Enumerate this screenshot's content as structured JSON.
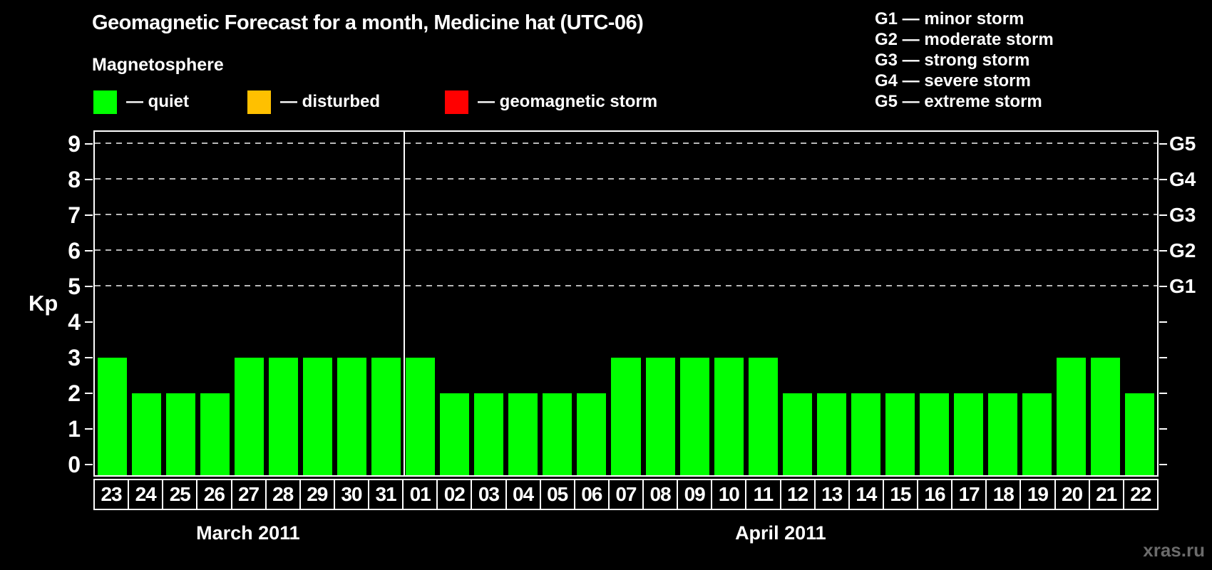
{
  "title": "Geomagnetic Forecast for a month, Medicine hat (UTC-06)",
  "subtitle": "Magnetosphere",
  "legend": {
    "items": [
      {
        "label": "— quiet",
        "color": "#00ff00"
      },
      {
        "label": "— disturbed",
        "color": "#ffc000"
      },
      {
        "label": "— geomagnetic storm",
        "color": "#ff0000"
      }
    ]
  },
  "g_legend": [
    "G1 — minor storm",
    "G2 — moderate storm",
    "G3 — strong storm",
    "G4 — severe storm",
    "G5 — extreme storm"
  ],
  "y_axis": {
    "label": "Kp",
    "ticks": [
      0,
      1,
      2,
      3,
      4,
      5,
      6,
      7,
      8,
      9
    ]
  },
  "right_axis": {
    "labels": [
      {
        "kp": 9,
        "label": "G5"
      },
      {
        "kp": 8,
        "label": "G4"
      },
      {
        "kp": 7,
        "label": "G3"
      },
      {
        "kp": 6,
        "label": "G2"
      },
      {
        "kp": 5,
        "label": "G1"
      }
    ]
  },
  "watermark": "xras.ru",
  "chart_data": {
    "type": "bar",
    "title": "Geomagnetic Forecast for a month, Medicine hat (UTC-06)",
    "xlabel": "",
    "ylabel": "Kp",
    "ylim": [
      0,
      9.5
    ],
    "grid": "horizontal dashed lines at Kp 5,6,7,8,9",
    "legend_position": "top",
    "bar_color": "#00ff00",
    "gridline_levels": [
      5,
      6,
      7,
      8,
      9
    ],
    "categories": [
      "23",
      "24",
      "25",
      "26",
      "27",
      "28",
      "29",
      "30",
      "31",
      "01",
      "02",
      "03",
      "04",
      "05",
      "06",
      "07",
      "08",
      "09",
      "10",
      "11",
      "12",
      "13",
      "14",
      "15",
      "16",
      "17",
      "18",
      "19",
      "20",
      "21",
      "22"
    ],
    "values": [
      3,
      2,
      2,
      2,
      3,
      3,
      3,
      3,
      3,
      3,
      2,
      2,
      2,
      2,
      2,
      3,
      3,
      3,
      3,
      3,
      2,
      2,
      2,
      2,
      2,
      2,
      2,
      2,
      3,
      3,
      2
    ],
    "months": [
      {
        "label": "March 2011",
        "num_days": 9
      },
      {
        "label": "April 2011",
        "num_days": 22
      }
    ]
  }
}
